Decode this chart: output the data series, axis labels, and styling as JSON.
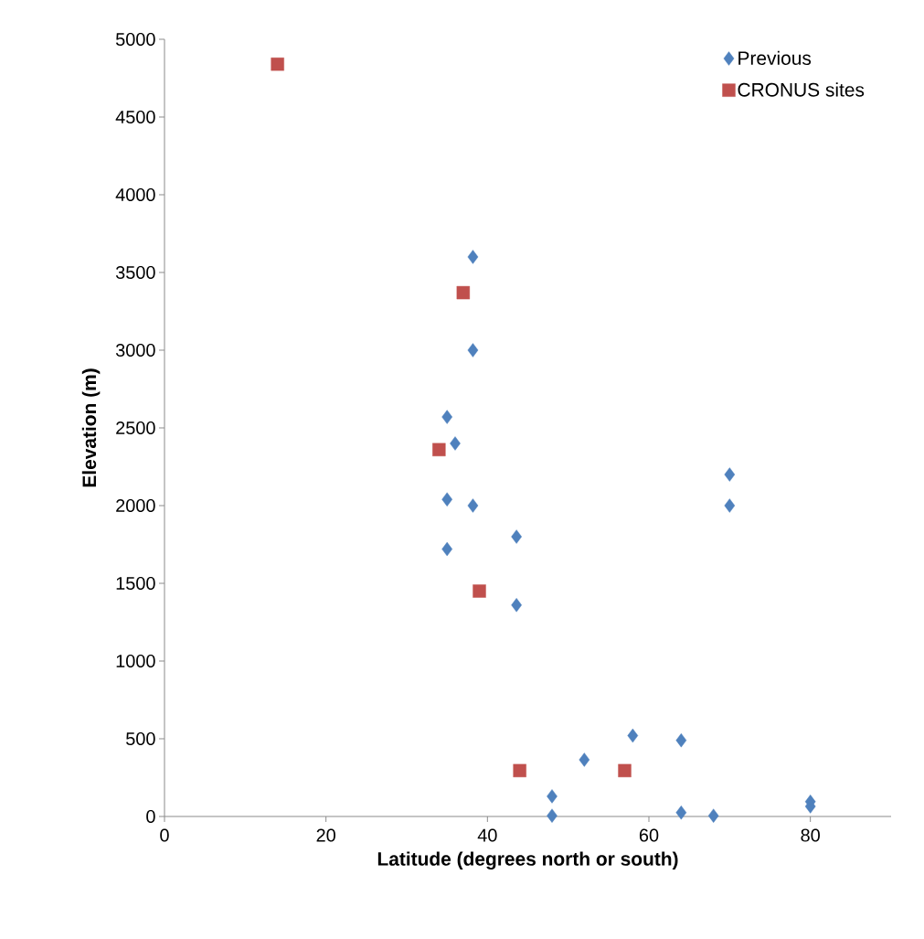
{
  "chart_data": {
    "type": "scatter",
    "xlabel": "Latitude (degrees north or south)",
    "ylabel": "Elevation (m)",
    "xlim": [
      0,
      90
    ],
    "xticks": [
      0,
      20,
      40,
      60,
      80
    ],
    "ylim": [
      0,
      5000
    ],
    "yticks": [
      0,
      500,
      1000,
      1500,
      2000,
      2500,
      3000,
      3500,
      4000,
      4500,
      5000
    ],
    "grid": false,
    "legend": "top right",
    "series": [
      {
        "name": "Previous",
        "color": "#4f81bd",
        "marker": "diamond",
        "x": [
          38.2,
          38.2,
          35,
          36,
          35,
          38.2,
          35,
          43.6,
          43.6,
          70,
          70,
          58,
          64,
          52,
          48,
          48,
          64,
          68,
          80,
          80
        ],
        "values": [
          3600,
          3000,
          2570,
          2400,
          2040,
          2000,
          1720,
          1800,
          1360,
          2200,
          2000,
          520,
          490,
          365,
          130,
          5,
          25,
          5,
          95,
          65
        ]
      },
      {
        "name": "CRONUS sites",
        "color": "#c0504d",
        "marker": "square",
        "x": [
          14,
          37,
          34,
          39,
          44,
          57
        ],
        "values": [
          4840,
          3370,
          2360,
          1450,
          295,
          295
        ]
      }
    ]
  }
}
